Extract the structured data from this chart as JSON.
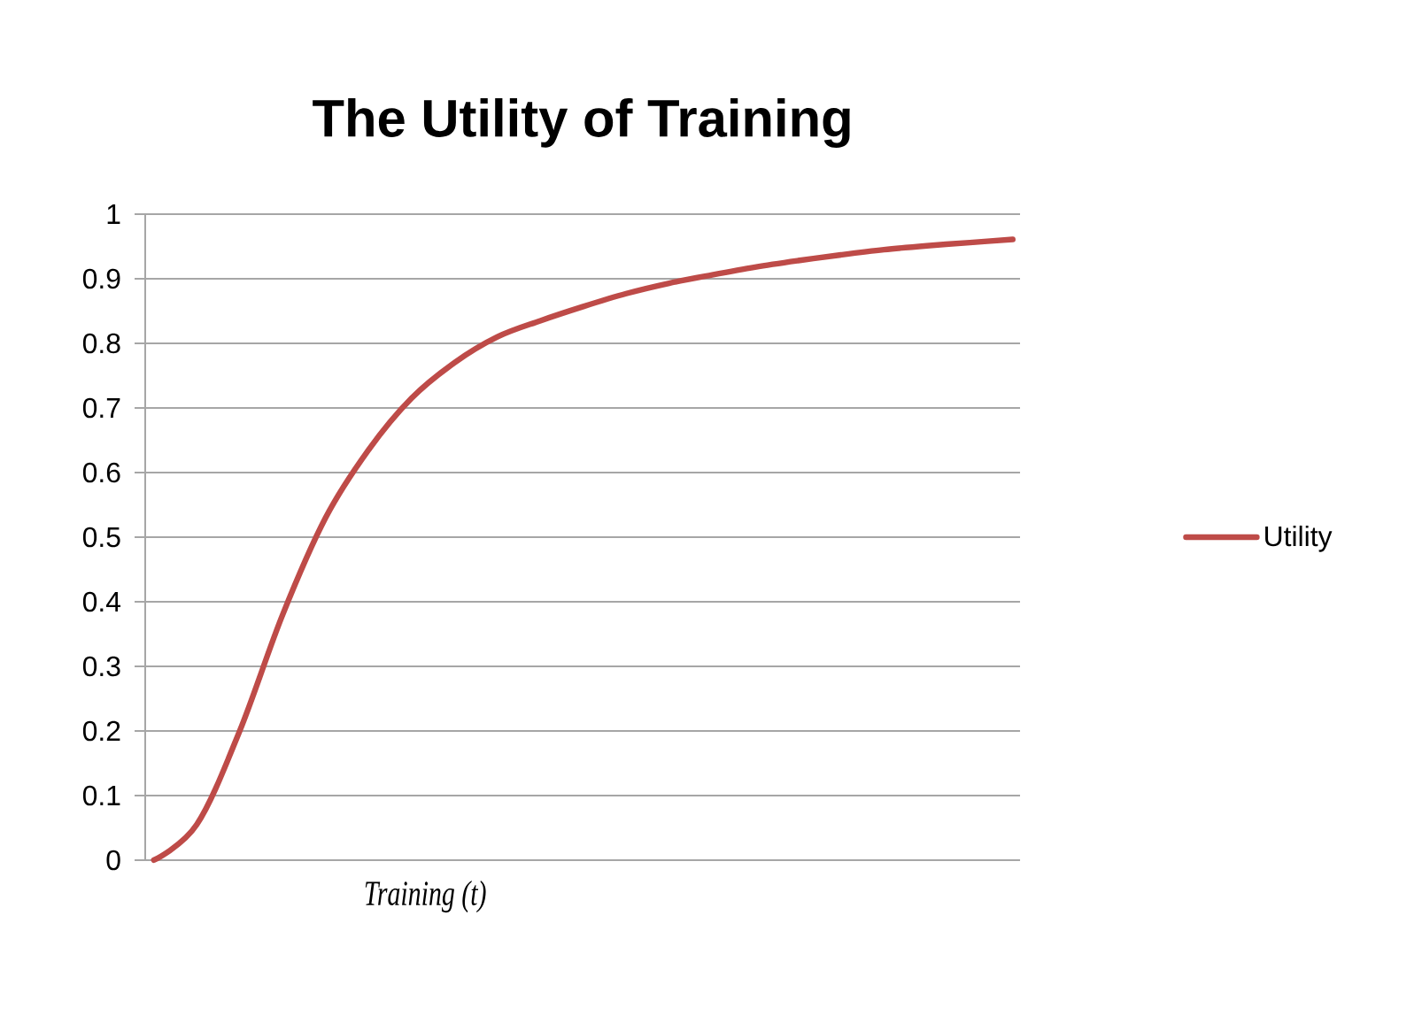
{
  "chart_data": {
    "type": "line",
    "title": "The Utility of Training",
    "xlabel": "Training (t)",
    "categories": [
      null,
      null,
      null,
      null,
      null,
      null,
      null,
      null,
      null,
      null,
      null,
      null,
      null,
      null,
      null,
      null,
      null,
      null,
      null,
      null,
      null
    ],
    "series": [
      {
        "name": "Utility",
        "color": "#be4b48",
        "values": [
          0,
          0.055,
          0.2,
          0.38,
          0.53,
          0.635,
          0.715,
          0.77,
          0.81,
          0.835,
          0.857,
          0.877,
          0.893,
          0.906,
          0.918,
          0.928,
          0.937,
          0.945,
          0.951,
          0.956,
          0.961
        ]
      }
    ],
    "ylim": [
      0,
      1
    ],
    "yticks": [
      0,
      0.1,
      0.2,
      0.3,
      0.4,
      0.5,
      0.6,
      0.7,
      0.8,
      0.9,
      1
    ],
    "grid": "y",
    "legend": "right"
  }
}
